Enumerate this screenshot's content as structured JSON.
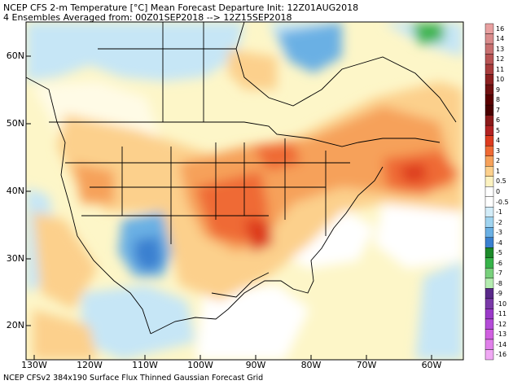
{
  "header": {
    "title": "NCEP CFS 2-m Temperature [°C] Mean Forecast Departure Init: 12Z01AUG2018",
    "subtitle": "4 Ensembles Averaged from: 00Z01SEP2018 --> 12Z15SEP2018"
  },
  "footer": {
    "text": "NCEP CFSv2 384x190 Surface Flux Thinned Gaussian Forecast Grid"
  },
  "map": {
    "lat_labels": [
      "60N",
      "50N",
      "40N",
      "30N",
      "20N"
    ],
    "lon_labels": [
      "130W",
      "120W",
      "110W",
      "100W",
      "90W",
      "80W",
      "70W",
      "60W"
    ]
  },
  "colorbar": {
    "labels": [
      "16",
      "14",
      "13",
      "12",
      "11",
      "10",
      "9",
      "8",
      "7",
      "6",
      "5",
      "4",
      "3",
      "2",
      "1",
      "0.5",
      "0",
      "-0.5",
      "-1",
      "-2",
      "-3",
      "-4",
      "-5",
      "-6",
      "-7",
      "-8",
      "-9",
      "-10",
      "-11",
      "-12",
      "-13",
      "-14",
      "-16"
    ],
    "colors": [
      "#e8a0a0",
      "#d98c8c",
      "#c87070",
      "#b85454",
      "#a83c3c",
      "#8c2020",
      "#701010",
      "#5a0000",
      "#4a0000",
      "#8b1a1a",
      "#b22222",
      "#dd3b1f",
      "#ef6a34",
      "#f6a15a",
      "#fcd08c",
      "#fcf2c0",
      "#ffffff",
      "#ffffff",
      "#d2ecf8",
      "#a0d4f0",
      "#6ab0e4",
      "#3a80d0",
      "#1c8a2a",
      "#37b34a",
      "#78d07c",
      "#b4ecb0",
      "#5a2a8a",
      "#7a3aa8",
      "#9a3ac8",
      "#b44cd8",
      "#d060e0",
      "#e080ea",
      "#f0a8f4"
    ]
  }
}
